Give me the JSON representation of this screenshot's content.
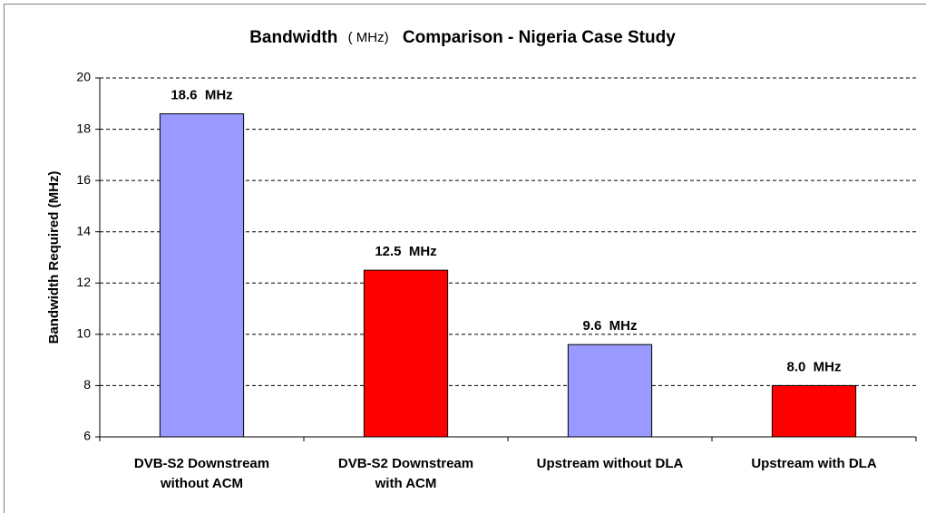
{
  "chart_data": {
    "type": "bar",
    "title": [
      "Bandwidth",
      "( MHz)",
      "Comparison - Nigeria Case Study"
    ],
    "y_label": "Bandwidth Required (MHz)",
    "categories": [
      [
        "DVB-S2 Downstream",
        "without ACM"
      ],
      [
        "DVB-S2 Downstream",
        "with ACM"
      ],
      [
        "Upstream without DLA"
      ],
      [
        "Upstream with DLA"
      ]
    ],
    "values": [
      18.6,
      12.5,
      9.6,
      8.0
    ],
    "value_labels": [
      "18.6  MHz",
      "12.5  MHz",
      "9.6  MHz",
      "8.0  MHz"
    ],
    "colors": [
      "#9999ff",
      "#ff0000",
      "#9999ff",
      "#ff0000"
    ],
    "ylim": [
      6,
      20
    ],
    "yticks": [
      6,
      8,
      10,
      12,
      14,
      16,
      18,
      20
    ],
    "grid": true
  }
}
